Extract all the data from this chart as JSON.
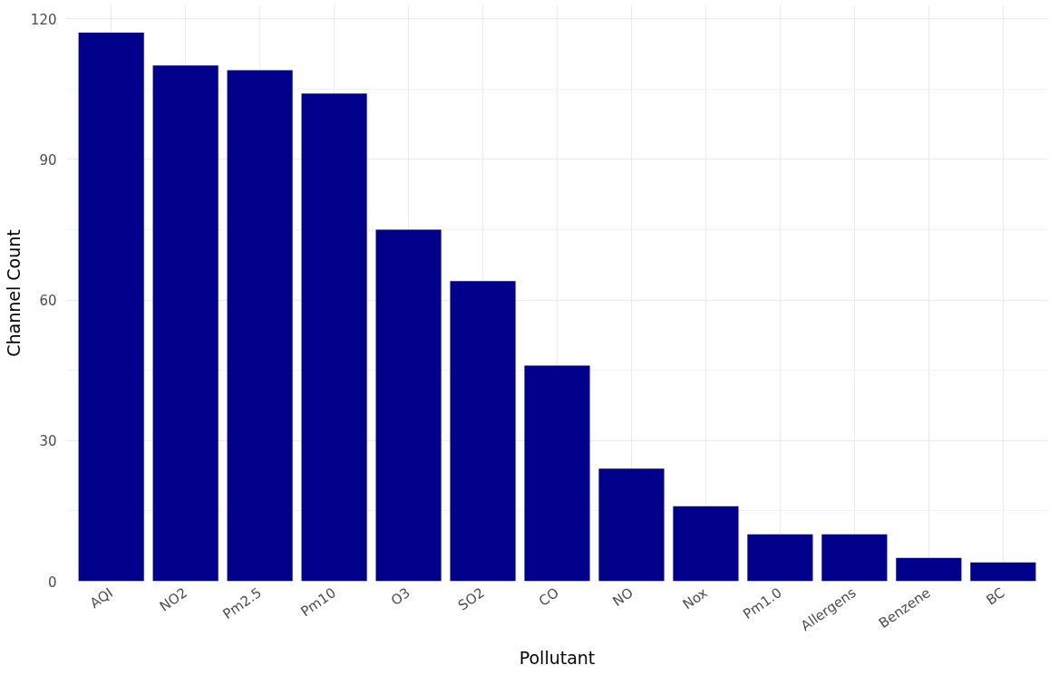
{
  "chart_data": {
    "type": "bar",
    "xlabel": "Pollutant",
    "ylabel": "Channel Count",
    "categories": [
      "AQI",
      "NO2",
      "Pm2.5",
      "Pm10",
      "O3",
      "SO2",
      "CO",
      "NO",
      "Nox",
      "Pm1.0",
      "Allergens",
      "Benzene",
      "BC"
    ],
    "values": [
      117,
      110,
      109,
      104,
      75,
      64,
      46,
      24,
      16,
      10,
      10,
      5,
      4
    ],
    "color": "#00008b",
    "ylim": [
      0,
      122.9
    ],
    "yticks": [
      0,
      30,
      60,
      90,
      120
    ],
    "grid": true
  }
}
